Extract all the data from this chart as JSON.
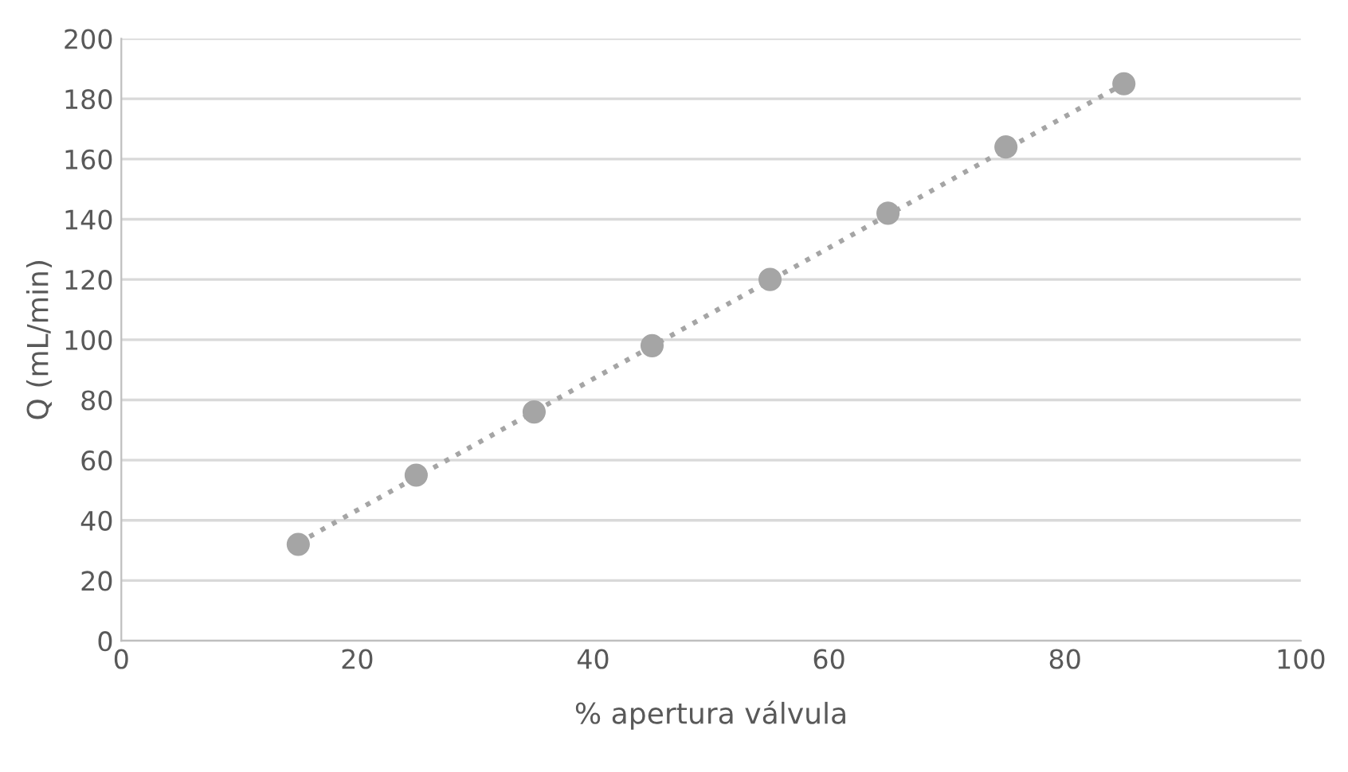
{
  "chart_data": {
    "type": "scatter",
    "xlabel": "% apertura válvula",
    "ylabel": "Q (mL/min)",
    "series": [
      {
        "color": "#a5a5a5",
        "x": [
          15,
          25,
          35,
          45,
          55,
          65,
          75,
          85
        ],
        "values": [
          32,
          55,
          76,
          98,
          120,
          142,
          164,
          185
        ],
        "marker": "circle"
      },
      {
        "type": "line",
        "color": "#a5a5a5",
        "x": [
          15,
          85
        ],
        "values": [
          32.5,
          185
        ],
        "line_style": "dotted"
      }
    ],
    "xlim": [
      0,
      100
    ],
    "xticks": [
      0,
      20,
      40,
      60,
      80,
      100
    ],
    "ylim": [
      0,
      200
    ],
    "yticks": [
      0,
      20,
      40,
      60,
      80,
      100,
      120,
      140,
      160,
      180,
      200
    ],
    "grid": "y",
    "legend": false
  }
}
